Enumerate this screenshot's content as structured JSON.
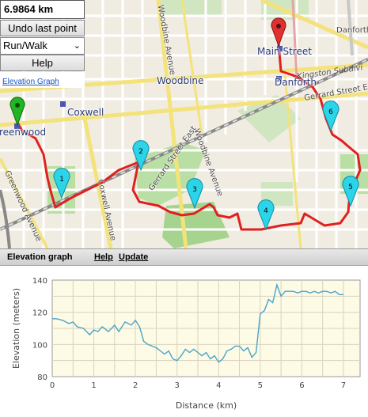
{
  "controls": {
    "distance": "6.9864 km",
    "undo_label": "Undo last point",
    "mode_value": "Run/Walk",
    "help_label": "Help",
    "elevation_link": "Elevation Graph"
  },
  "map": {
    "places": {
      "coxwell": "Coxwell",
      "greenwood": "reenwood",
      "woodbine": "Woodbine",
      "main_street": "Main Street",
      "danforth_station": "Danforth"
    },
    "streets": {
      "woodbine_ave_north": "Woodbine Avenue",
      "woodbine_ave_south": "Woodbine Avenue",
      "gerrard_east": "Gerrard Street East",
      "gerrard_right": "Gerrard Street E",
      "coxwell_ave": "Coxwell Avenue",
      "greenwood_ave": "Greenwood Avenue",
      "danforth_right": "Danforth",
      "kingston": "Kingston Subdivi"
    },
    "markers": [
      "1",
      "2",
      "3",
      "4",
      "5",
      "6"
    ],
    "colors": {
      "route": "#e02020",
      "marker": "#2bd4e8",
      "start": "#22b422",
      "end": "#e03030"
    }
  },
  "panel": {
    "title": "Elevation graph",
    "help": "Help",
    "update": "Update"
  },
  "chart_data": {
    "type": "line",
    "ylabel": "Elevation (meters)",
    "xlabel": "Distance (km)",
    "xlim": [
      0,
      7.4
    ],
    "ylim": [
      80,
      140
    ],
    "xticks": [
      "0",
      "1",
      "2",
      "3",
      "4",
      "5",
      "6",
      "7"
    ],
    "yticks": [
      "80",
      "100",
      "120",
      "140"
    ],
    "grid": true,
    "color": "#4aa3c8",
    "x": [
      0,
      0.1,
      0.25,
      0.4,
      0.5,
      0.6,
      0.75,
      0.9,
      1.0,
      1.1,
      1.2,
      1.35,
      1.5,
      1.6,
      1.75,
      1.9,
      2.0,
      2.1,
      2.2,
      2.3,
      2.4,
      2.5,
      2.6,
      2.7,
      2.8,
      2.9,
      3.0,
      3.1,
      3.2,
      3.3,
      3.4,
      3.5,
      3.6,
      3.7,
      3.8,
      3.9,
      4.0,
      4.1,
      4.2,
      4.3,
      4.4,
      4.5,
      4.6,
      4.7,
      4.8,
      4.9,
      5.0,
      5.1,
      5.2,
      5.3,
      5.4,
      5.5,
      5.6,
      5.7,
      5.8,
      5.9,
      6.0,
      6.1,
      6.2,
      6.3,
      6.4,
      6.5,
      6.6,
      6.7,
      6.8,
      6.9,
      7.0
    ],
    "y": [
      116,
      116,
      115,
      113,
      114,
      111,
      110,
      106,
      109,
      108,
      111,
      108,
      112,
      108,
      114,
      112,
      115,
      111,
      102,
      100,
      99,
      98,
      96,
      94,
      96,
      91,
      90,
      93,
      97,
      95,
      97,
      95,
      93,
      95,
      91,
      93,
      89,
      91,
      96,
      97,
      99,
      99,
      96,
      98,
      92,
      95,
      119,
      121,
      128,
      126,
      137,
      130,
      133,
      133,
      133,
      132,
      133,
      133,
      132,
      133,
      132,
      133,
      133,
      132,
      133,
      131,
      131
    ]
  }
}
